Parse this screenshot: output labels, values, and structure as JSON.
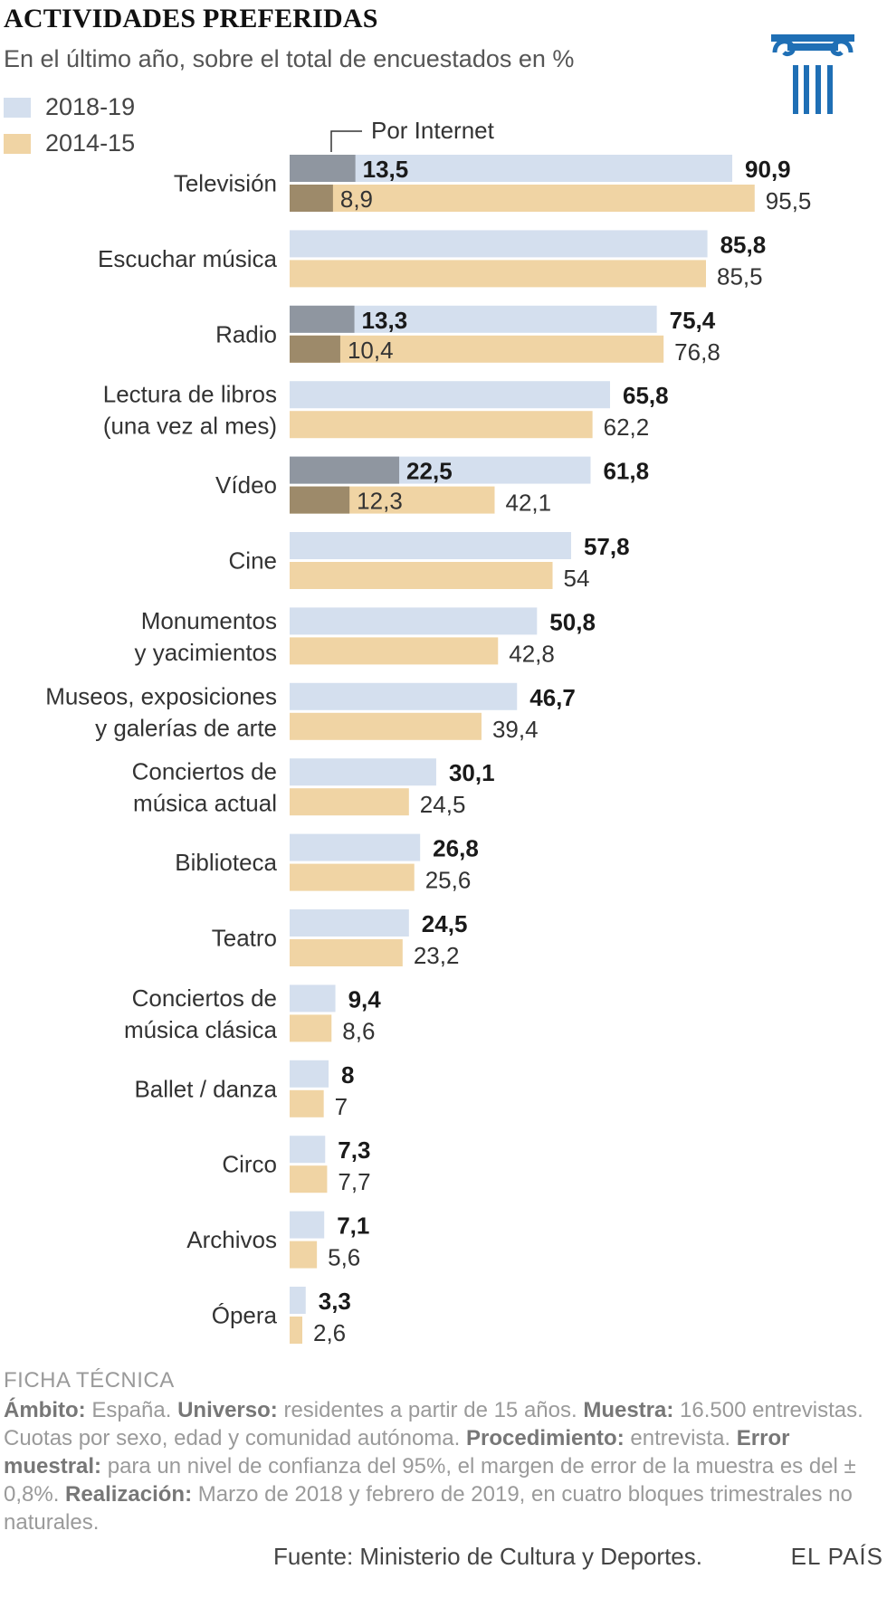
{
  "header": {
    "title": "ACTIVIDADES PREFERIDAS",
    "subtitle": "En el último año, sobre el total de encuestados en %",
    "icon": "ionic-column-icon"
  },
  "colors": {
    "recent": "#d4dfee",
    "old": "#f0d4a4",
    "internet_recent": "#8f96a0",
    "internet_old": "#9d8a6a",
    "icon": "#1f6fb5"
  },
  "chart_data": {
    "type": "bar",
    "orientation": "horizontal",
    "title": "ACTIVIDADES PREFERIDAS",
    "subtitle": "En el último año, sobre el total de encuestados en %",
    "xlim": [
      0,
      100
    ],
    "legend": [
      {
        "name": "2018-19",
        "color": "#d4dfee"
      },
      {
        "name": "2014-15",
        "color": "#f0d4a4"
      }
    ],
    "annotation": "Por Internet",
    "categories": [
      [
        "Televisión"
      ],
      [
        "Escuchar música"
      ],
      [
        "Radio"
      ],
      [
        "Lectura de libros",
        "(una vez al mes)"
      ],
      [
        "Vídeo"
      ],
      [
        "Cine"
      ],
      [
        "Monumentos",
        "y yacimientos"
      ],
      [
        "Museos, exposiciones",
        "y galerías de arte"
      ],
      [
        "Conciertos de",
        "música actual"
      ],
      [
        "Biblioteca"
      ],
      [
        "Teatro"
      ],
      [
        "Conciertos de",
        "música clásica"
      ],
      [
        "Ballet / danza"
      ],
      [
        "Circo"
      ],
      [
        "Archivos"
      ],
      [
        "Ópera"
      ]
    ],
    "series": [
      {
        "name": "2018-19",
        "values": [
          90.9,
          85.8,
          75.4,
          65.8,
          61.8,
          57.8,
          50.8,
          46.7,
          30.1,
          26.8,
          24.5,
          9.4,
          8,
          7.3,
          7.1,
          3.3
        ],
        "labels": [
          "90,9",
          "85,8",
          "75,4",
          "65,8",
          "61,8",
          "57,8",
          "50,8",
          "46,7",
          "30,1",
          "26,8",
          "24,5",
          "9,4",
          "8",
          "7,3",
          "7,1",
          "3,3"
        ]
      },
      {
        "name": "2014-15",
        "values": [
          95.5,
          85.5,
          76.8,
          62.2,
          42.1,
          54,
          42.8,
          39.4,
          24.5,
          25.6,
          23.2,
          8.6,
          7,
          7.7,
          5.6,
          2.6
        ],
        "labels": [
          "95,5",
          "85,5",
          "76,8",
          "62,2",
          "42,1",
          "54",
          "42,8",
          "39,4",
          "24,5",
          "25,6",
          "23,2",
          "8,6",
          "7",
          "7,7",
          "5,6",
          "2,6"
        ]
      }
    ],
    "internet": {
      "2018-19": {
        "values": [
          13.5,
          null,
          13.3,
          null,
          22.5,
          null,
          null,
          null,
          null,
          null,
          null,
          null,
          null,
          null,
          null,
          null
        ],
        "labels": [
          "13,5",
          null,
          "13,3",
          null,
          "22,5",
          null,
          null,
          null,
          null,
          null,
          null,
          null,
          null,
          null,
          null,
          null
        ]
      },
      "2014-15": {
        "values": [
          8.9,
          null,
          10.4,
          null,
          12.3,
          null,
          null,
          null,
          null,
          null,
          null,
          null,
          null,
          null,
          null,
          null
        ],
        "labels": [
          "8,9",
          null,
          "10,4",
          null,
          "12,3",
          null,
          null,
          null,
          null,
          null,
          null,
          null,
          null,
          null,
          null,
          null
        ]
      }
    }
  },
  "ficha": {
    "heading": "FICHA TÉCNICA",
    "ambito_label": "Ámbito:",
    "ambito_text": "España.",
    "universo_label": "Universo:",
    "universo_text": "residentes a partir de 15 años.",
    "muestra_label": "Muestra:",
    "muestra_text": "16.500 entrevistas. Cuotas por sexo, edad y comunidad autónoma.",
    "procedimiento_label": "Procedimiento:",
    "procedimiento_text": "entrevista.",
    "error_label": "Error muestral:",
    "error_text": "para un nivel de confianza del 95%, el margen de error de la muestra es del ± 0,8%.",
    "realizacion_label": "Realización:",
    "realizacion_text": "Marzo de 2018 y febrero de 2019, en cuatro bloques trimestrales no naturales."
  },
  "footer": {
    "source": "Fuente: Ministerio de Cultura y Deportes.",
    "brand": "EL PAÍS"
  }
}
